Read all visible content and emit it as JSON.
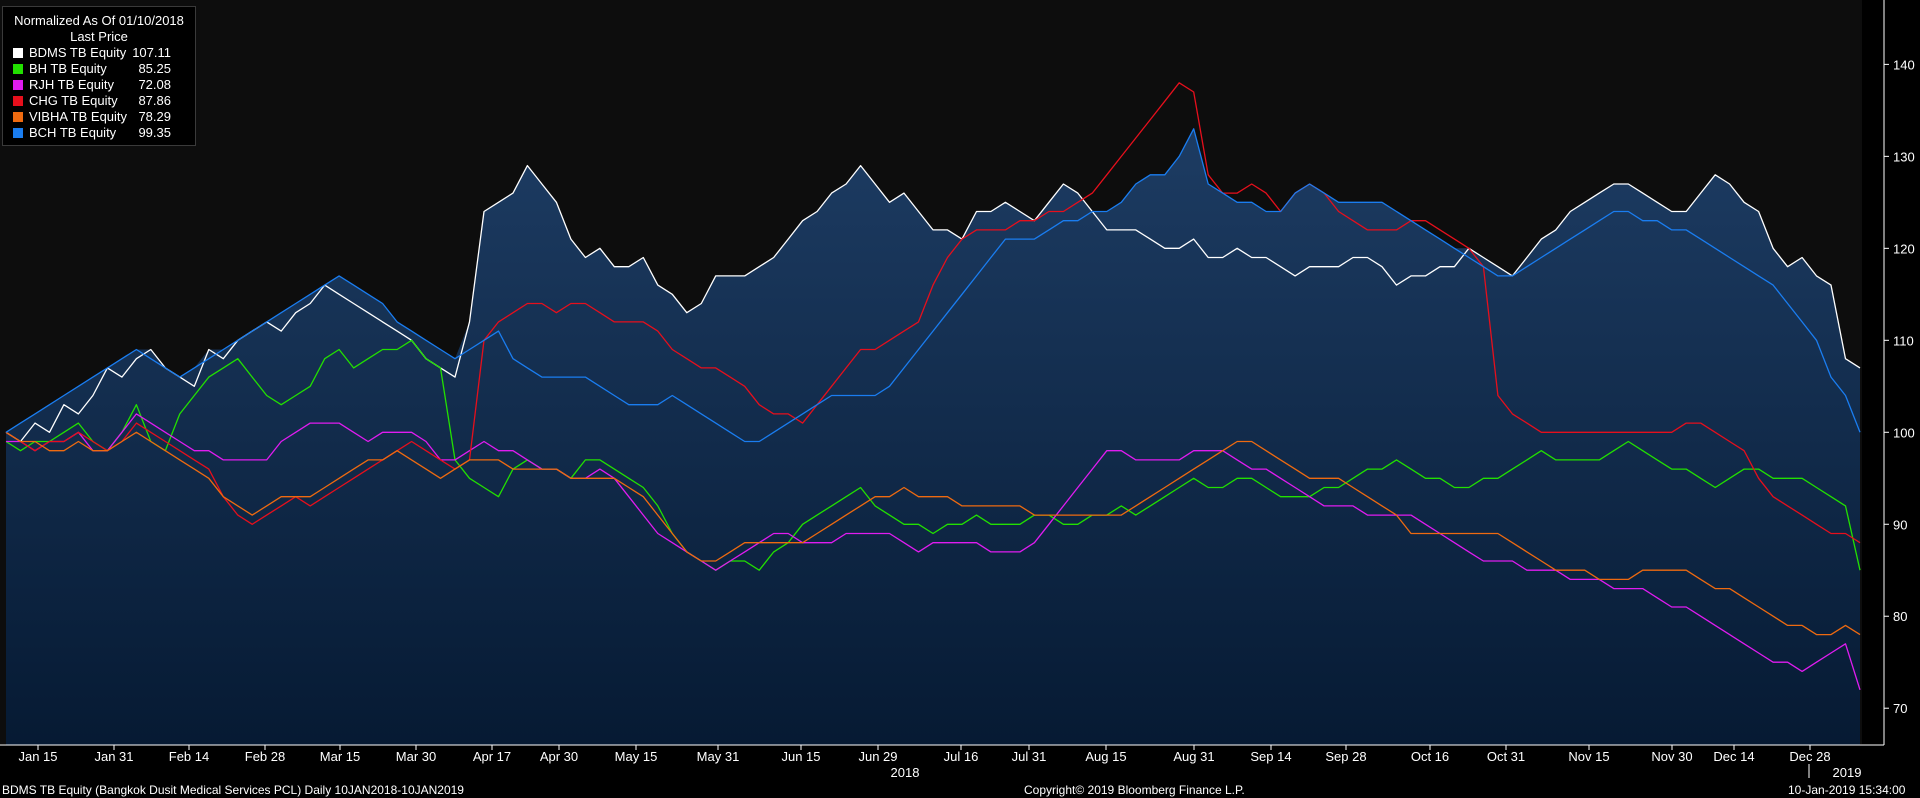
{
  "legend": {
    "title": "Normalized As Of 01/10/2018",
    "subtitle": "Last Price"
  },
  "footer": {
    "left": "BDMS TB Equity (Bangkok Dusit Medical Services PCL)  Daily 10JAN2018-10JAN2019",
    "center": "Copyright© 2019 Bloomberg Finance L.P.",
    "right": "10-Jan-2019 15:34:00"
  },
  "chart_data": {
    "type": "line",
    "y_axis": {
      "position": "right",
      "ticks": [
        70,
        80,
        90,
        100,
        110,
        120,
        130,
        140
      ],
      "range": [
        66,
        147
      ]
    },
    "x_axis": {
      "tick_labels": [
        "Jan 15",
        "Jan 31",
        "Feb 14",
        "Feb 28",
        "Mar 15",
        "Mar 30",
        "Apr 17",
        "Apr 30",
        "May 15",
        "May 31",
        "Jun 15",
        "Jun 29",
        "Jul 16",
        "Jul 31",
        "Aug 15",
        "Aug 31",
        "Sep 14",
        "Sep 28",
        "Oct 16",
        "Oct 31",
        "Nov 15",
        "Nov 30",
        "Dec 14",
        "Dec 28"
      ],
      "year_labels": [
        "2018",
        "2019"
      ]
    },
    "background_gradient": [
      "#1d3c63",
      "#061a33"
    ],
    "series": [
      {
        "name": "BDMS TB Equity",
        "last": "107.11",
        "color": "#ffffff",
        "area": true,
        "values": [
          100,
          99,
          101,
          100,
          103,
          102,
          104,
          107,
          106,
          108,
          109,
          107,
          106,
          105,
          109,
          108,
          110,
          111,
          112,
          111,
          113,
          114,
          116,
          115,
          114,
          113,
          112,
          111,
          110,
          108,
          107,
          106,
          112,
          124,
          125,
          126,
          129,
          127,
          125,
          121,
          119,
          120,
          118,
          118,
          119,
          116,
          115,
          113,
          114,
          117,
          117,
          117,
          118,
          119,
          121,
          123,
          124,
          126,
          127,
          129,
          127,
          125,
          126,
          124,
          122,
          122,
          121,
          124,
          124,
          125,
          124,
          123,
          125,
          127,
          126,
          124,
          122,
          122,
          122,
          121,
          120,
          120,
          121,
          119,
          119,
          120,
          119,
          119,
          118,
          117,
          118,
          118,
          118,
          119,
          119,
          118,
          116,
          117,
          117,
          118,
          118,
          120,
          119,
          118,
          117,
          119,
          121,
          122,
          124,
          125,
          126,
          127,
          127,
          126,
          125,
          124,
          124,
          126,
          128,
          127,
          125,
          124,
          120,
          118,
          119,
          117,
          116,
          108,
          107
        ]
      },
      {
        "name": "BH TB Equity",
        "last": "85.25",
        "color": "#22e000",
        "area": false,
        "values": [
          99,
          98,
          99,
          99,
          100,
          101,
          99,
          98,
          100,
          103,
          99,
          98,
          102,
          104,
          106,
          107,
          108,
          106,
          104,
          103,
          104,
          105,
          108,
          109,
          107,
          108,
          109,
          109,
          110,
          108,
          107,
          97,
          95,
          94,
          93,
          96,
          97,
          96,
          96,
          95,
          97,
          97,
          96,
          95,
          94,
          92,
          89,
          87,
          86,
          85,
          86,
          86,
          85,
          87,
          88,
          90,
          91,
          92,
          93,
          94,
          92,
          91,
          90,
          90,
          89,
          90,
          90,
          91,
          90,
          90,
          90,
          91,
          91,
          90,
          90,
          91,
          91,
          92,
          91,
          92,
          93,
          94,
          95,
          94,
          94,
          95,
          95,
          94,
          93,
          93,
          93,
          94,
          94,
          95,
          96,
          96,
          97,
          96,
          95,
          95,
          94,
          94,
          95,
          95,
          96,
          97,
          98,
          97,
          97,
          97,
          97,
          98,
          99,
          98,
          97,
          96,
          96,
          95,
          94,
          95,
          96,
          96,
          95,
          95,
          95,
          94,
          93,
          92,
          85
        ]
      },
      {
        "name": "RJH TB Equity",
        "last": "72.08",
        "color": "#e01cf0",
        "area": false,
        "values": [
          99,
          99,
          98,
          99,
          99,
          100,
          98,
          98,
          100,
          102,
          101,
          100,
          99,
          98,
          98,
          97,
          97,
          97,
          97,
          99,
          100,
          101,
          101,
          101,
          100,
          99,
          100,
          100,
          100,
          99,
          97,
          97,
          98,
          99,
          98,
          98,
          97,
          96,
          96,
          95,
          95,
          96,
          95,
          93,
          91,
          89,
          88,
          87,
          86,
          85,
          86,
          87,
          88,
          89,
          89,
          88,
          88,
          88,
          89,
          89,
          89,
          89,
          88,
          87,
          88,
          88,
          88,
          88,
          87,
          87,
          87,
          88,
          90,
          92,
          94,
          96,
          98,
          98,
          97,
          97,
          97,
          97,
          98,
          98,
          98,
          97,
          96,
          96,
          95,
          94,
          93,
          92,
          92,
          92,
          91,
          91,
          91,
          91,
          90,
          89,
          88,
          87,
          86,
          86,
          86,
          85,
          85,
          85,
          84,
          84,
          84,
          83,
          83,
          83,
          82,
          81,
          81,
          80,
          79,
          78,
          77,
          76,
          75,
          75,
          74,
          75,
          76,
          77,
          72
        ]
      },
      {
        "name": "CHG TB Equity",
        "last": "87.86",
        "color": "#e60f1c",
        "area": false,
        "values": [
          100,
          99,
          98,
          99,
          99,
          100,
          99,
          98,
          99,
          101,
          100,
          99,
          98,
          97,
          96,
          93,
          91,
          90,
          91,
          92,
          93,
          92,
          93,
          94,
          95,
          96,
          97,
          98,
          99,
          98,
          97,
          96,
          97,
          110,
          112,
          113,
          114,
          114,
          113,
          114,
          114,
          113,
          112,
          112,
          112,
          111,
          109,
          108,
          107,
          107,
          106,
          105,
          103,
          102,
          102,
          101,
          103,
          105,
          107,
          109,
          109,
          110,
          111,
          112,
          116,
          119,
          121,
          122,
          122,
          122,
          123,
          123,
          124,
          124,
          125,
          126,
          128,
          130,
          132,
          134,
          136,
          138,
          137,
          128,
          126,
          126,
          127,
          126,
          124,
          126,
          127,
          126,
          124,
          123,
          122,
          122,
          122,
          123,
          123,
          122,
          121,
          120,
          118,
          104,
          102,
          101,
          100,
          100,
          100,
          100,
          100,
          100,
          100,
          100,
          100,
          100,
          101,
          101,
          100,
          99,
          98,
          95,
          93,
          92,
          91,
          90,
          89,
          89,
          88
        ]
      },
      {
        "name": "VIBHA TB Equity",
        "last": "78.29",
        "color": "#ee6a10",
        "area": false,
        "values": [
          100,
          99,
          99,
          98,
          98,
          99,
          98,
          98,
          99,
          100,
          99,
          98,
          97,
          96,
          95,
          93,
          92,
          91,
          92,
          93,
          93,
          93,
          94,
          95,
          96,
          97,
          97,
          98,
          97,
          96,
          95,
          96,
          97,
          97,
          97,
          96,
          96,
          96,
          96,
          95,
          95,
          95,
          95,
          94,
          93,
          91,
          89,
          87,
          86,
          86,
          87,
          88,
          88,
          88,
          88,
          88,
          89,
          90,
          91,
          92,
          93,
          93,
          94,
          93,
          93,
          93,
          92,
          92,
          92,
          92,
          92,
          91,
          91,
          91,
          91,
          91,
          91,
          91,
          92,
          93,
          94,
          95,
          96,
          97,
          98,
          99,
          99,
          98,
          97,
          96,
          95,
          95,
          95,
          94,
          93,
          92,
          91,
          89,
          89,
          89,
          89,
          89,
          89,
          89,
          88,
          87,
          86,
          85,
          85,
          85,
          84,
          84,
          84,
          85,
          85,
          85,
          85,
          84,
          83,
          83,
          82,
          81,
          80,
          79,
          79,
          78,
          78,
          79,
          78
        ]
      },
      {
        "name": "BCH TB Equity",
        "last": "99.35",
        "color": "#1a7df0",
        "area": true,
        "values": [
          100,
          101,
          102,
          103,
          104,
          105,
          106,
          107,
          108,
          109,
          108,
          107,
          106,
          107,
          108,
          109,
          110,
          111,
          112,
          113,
          114,
          115,
          116,
          117,
          116,
          115,
          114,
          112,
          111,
          110,
          109,
          108,
          109,
          110,
          111,
          108,
          107,
          106,
          106,
          106,
          106,
          105,
          104,
          103,
          103,
          103,
          104,
          103,
          102,
          101,
          100,
          99,
          99,
          100,
          101,
          102,
          103,
          104,
          104,
          104,
          104,
          105,
          107,
          109,
          111,
          113,
          115,
          117,
          119,
          121,
          121,
          121,
          122,
          123,
          123,
          124,
          124,
          125,
          127,
          128,
          128,
          130,
          133,
          127,
          126,
          125,
          125,
          124,
          124,
          126,
          127,
          126,
          125,
          125,
          125,
          125,
          124,
          123,
          122,
          121,
          120,
          119,
          118,
          117,
          117,
          118,
          119,
          120,
          121,
          122,
          123,
          124,
          124,
          123,
          123,
          122,
          122,
          121,
          120,
          119,
          118,
          117,
          116,
          114,
          112,
          110,
          106,
          104,
          100
        ]
      }
    ]
  }
}
